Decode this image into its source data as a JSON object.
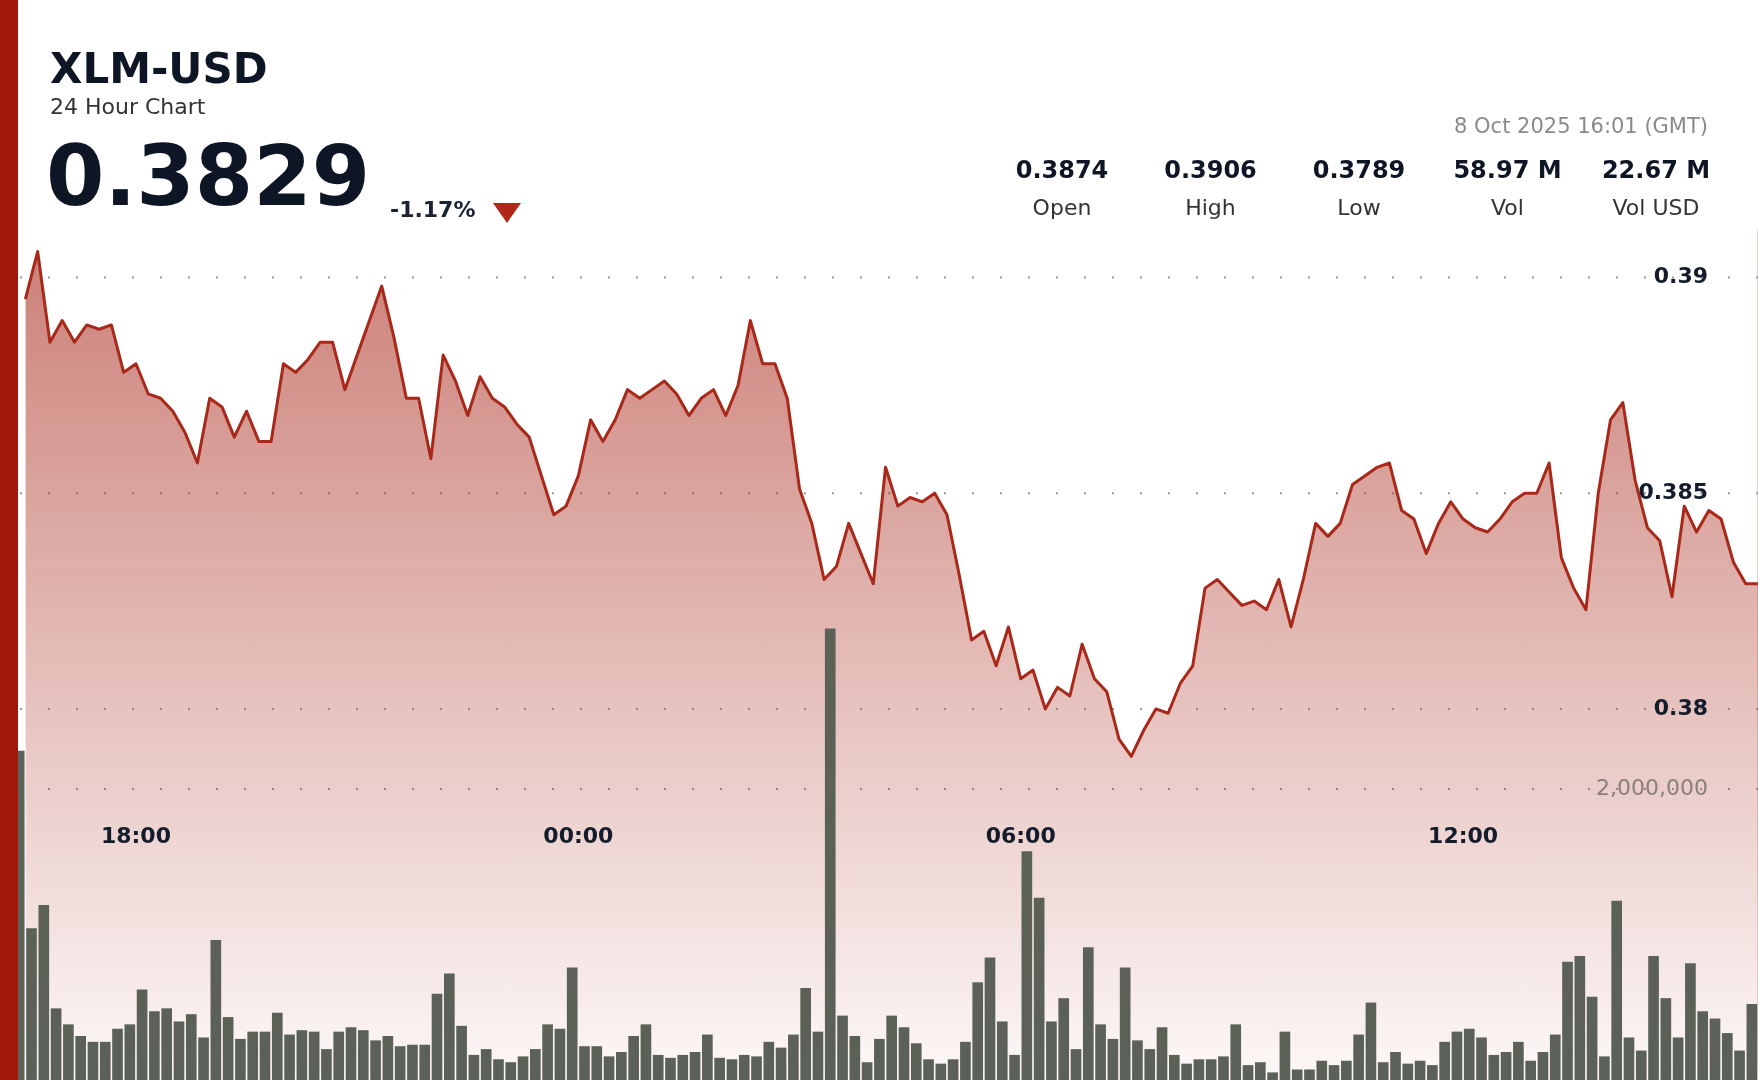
{
  "chart_data": {
    "type": "area",
    "title": "XLM-USD",
    "subtitle": "24 Hour Chart",
    "annotations": [
      "0.3829",
      "-1.17%",
      "8 Oct 2025 16:01 (GMT)",
      "0.3874",
      "Open",
      "0.3906",
      "High",
      "0.3789",
      "Low",
      "58.97 M",
      "Vol",
      "22.67 M",
      "Vol USD"
    ],
    "xlim": [
      "2025-10-07T16:24",
      "2025-10-08T16:00"
    ],
    "xticks": [
      {
        "value": "2025-10-07T18:00",
        "label": "18:00"
      },
      {
        "value": "2025-10-08T00:00",
        "label": "00:00"
      },
      {
        "value": "2025-10-08T06:00",
        "label": "06:00"
      },
      {
        "value": "2025-10-08T12:00",
        "label": "12:00"
      }
    ],
    "ylim": [
      0.3714,
      0.3911
    ],
    "yticks": [
      0.38,
      0.385,
      0.39
    ],
    "y2lim": [
      0,
      5840000
    ],
    "y2ticks": [
      {
        "value": 2000000,
        "label": "2,000,000"
      }
    ],
    "grid": "y",
    "series": [
      {
        "color": "#a8281a",
        "x": [
          "2025-10-07T16:30",
          "2025-10-07T16:40",
          "2025-10-07T16:50",
          "2025-10-07T17:00",
          "2025-10-07T17:10",
          "2025-10-07T17:20",
          "2025-10-07T17:30",
          "2025-10-07T17:40",
          "2025-10-07T17:50",
          "2025-10-07T18:00",
          "2025-10-07T18:10",
          "2025-10-07T18:20",
          "2025-10-07T18:30",
          "2025-10-07T18:40",
          "2025-10-07T18:50",
          "2025-10-07T19:00",
          "2025-10-07T19:10",
          "2025-10-07T19:20",
          "2025-10-07T19:30",
          "2025-10-07T19:40",
          "2025-10-07T19:50",
          "2025-10-07T20:00",
          "2025-10-07T20:10",
          "2025-10-07T20:20",
          "2025-10-07T20:30",
          "2025-10-07T20:40",
          "2025-10-07T20:50",
          "2025-10-07T21:00",
          "2025-10-07T21:10",
          "2025-10-07T21:20",
          "2025-10-07T21:30",
          "2025-10-07T21:40",
          "2025-10-07T21:50",
          "2025-10-07T22:00",
          "2025-10-07T22:10",
          "2025-10-07T22:20",
          "2025-10-07T22:30",
          "2025-10-07T22:40",
          "2025-10-07T22:50",
          "2025-10-07T23:00",
          "2025-10-07T23:10",
          "2025-10-07T23:20",
          "2025-10-07T23:30",
          "2025-10-07T23:40",
          "2025-10-07T23:50",
          "2025-10-08T00:00",
          "2025-10-08T00:10",
          "2025-10-08T00:20",
          "2025-10-08T00:30",
          "2025-10-08T00:40",
          "2025-10-08T00:50",
          "2025-10-08T01:00",
          "2025-10-08T01:10",
          "2025-10-08T01:20",
          "2025-10-08T01:30",
          "2025-10-08T01:40",
          "2025-10-08T01:50",
          "2025-10-08T02:00",
          "2025-10-08T02:10",
          "2025-10-08T02:20",
          "2025-10-08T02:30",
          "2025-10-08T02:40",
          "2025-10-08T02:50",
          "2025-10-08T03:00",
          "2025-10-08T03:10",
          "2025-10-08T03:20",
          "2025-10-08T03:30",
          "2025-10-08T03:40",
          "2025-10-08T03:50",
          "2025-10-08T04:00",
          "2025-10-08T04:10",
          "2025-10-08T04:20",
          "2025-10-08T04:30",
          "2025-10-08T04:40",
          "2025-10-08T04:50",
          "2025-10-08T05:00",
          "2025-10-08T05:10",
          "2025-10-08T05:20",
          "2025-10-08T05:30",
          "2025-10-08T05:40",
          "2025-10-08T05:50",
          "2025-10-08T06:00",
          "2025-10-08T06:10",
          "2025-10-08T06:20",
          "2025-10-08T06:30",
          "2025-10-08T06:40",
          "2025-10-08T06:50",
          "2025-10-08T07:00",
          "2025-10-08T07:10",
          "2025-10-08T07:20",
          "2025-10-08T07:30",
          "2025-10-08T07:40",
          "2025-10-08T07:50",
          "2025-10-08T08:00",
          "2025-10-08T08:10",
          "2025-10-08T08:20",
          "2025-10-08T08:30",
          "2025-10-08T08:40",
          "2025-10-08T08:50",
          "2025-10-08T09:00",
          "2025-10-08T09:10",
          "2025-10-08T09:20",
          "2025-10-08T09:30",
          "2025-10-08T09:40",
          "2025-10-08T09:50",
          "2025-10-08T10:00",
          "2025-10-08T10:10",
          "2025-10-08T10:20",
          "2025-10-08T10:30",
          "2025-10-08T10:40",
          "2025-10-08T10:50",
          "2025-10-08T11:00",
          "2025-10-08T11:10",
          "2025-10-08T11:20",
          "2025-10-08T11:30",
          "2025-10-08T11:40",
          "2025-10-08T11:50",
          "2025-10-08T12:00",
          "2025-10-08T12:10",
          "2025-10-08T12:20",
          "2025-10-08T12:30",
          "2025-10-08T12:40",
          "2025-10-08T12:50",
          "2025-10-08T13:00",
          "2025-10-08T13:10",
          "2025-10-08T13:20",
          "2025-10-08T13:30",
          "2025-10-08T13:40",
          "2025-10-08T13:50",
          "2025-10-08T14:00",
          "2025-10-08T14:10",
          "2025-10-08T14:20",
          "2025-10-08T14:30",
          "2025-10-08T14:40",
          "2025-10-08T14:50",
          "2025-10-08T15:00",
          "2025-10-08T15:10",
          "2025-10-08T15:20",
          "2025-10-08T15:30",
          "2025-10-08T15:40",
          "2025-10-08T15:50",
          "2025-10-08T16:00"
        ],
        "values": [
          0.3895,
          0.3906,
          0.3885,
          0.389,
          0.3885,
          0.3889,
          0.3888,
          0.3889,
          0.3878,
          0.388,
          0.3873,
          0.3872,
          0.3869,
          0.3864,
          0.3857,
          0.3872,
          0.387,
          0.3863,
          0.3869,
          0.3862,
          0.3862,
          0.388,
          0.3878,
          0.3881,
          0.3885,
          0.3885,
          0.3874,
          0.3882,
          0.389,
          0.3898,
          0.3886,
          0.3872,
          0.3872,
          0.3858,
          0.3882,
          0.3876,
          0.3868,
          0.3877,
          0.3872,
          0.387,
          0.3866,
          0.3863,
          0.3854,
          0.3845,
          0.3847,
          0.3854,
          0.3867,
          0.3862,
          0.3867,
          0.3874,
          0.3872,
          0.3874,
          0.3876,
          0.3873,
          0.3868,
          0.3872,
          0.3874,
          0.3868,
          0.3875,
          0.389,
          0.388,
          0.388,
          0.3872,
          0.3851,
          0.3843,
          0.383,
          0.3833,
          0.3843,
          0.3836,
          0.3829,
          0.3856,
          0.3847,
          0.3849,
          0.3848,
          0.385,
          0.3845,
          0.3831,
          0.3816,
          0.3818,
          0.381,
          0.3819,
          0.3807,
          0.3809,
          0.38,
          0.3805,
          0.3803,
          0.3815,
          0.3807,
          0.3804,
          0.3793,
          0.3789,
          0.3795,
          0.38,
          0.3799,
          0.3806,
          0.381,
          0.3828,
          0.383,
          0.3827,
          0.3824,
          0.3825,
          0.3823,
          0.383,
          0.3819,
          0.383,
          0.3843,
          0.384,
          0.3843,
          0.3852,
          0.3854,
          0.3856,
          0.3857,
          0.3846,
          0.3844,
          0.3836,
          0.3843,
          0.3848,
          0.3844,
          0.3842,
          0.3841,
          0.3844,
          0.3848,
          0.385,
          0.385,
          0.3857,
          0.3835,
          0.3828,
          0.3823,
          0.385,
          0.3867,
          0.3871,
          0.3853,
          0.3842,
          0.3839,
          0.3826,
          0.3847,
          0.3841,
          0.3846,
          0.3844,
          0.3834,
          0.3829,
          0.3829
        ]
      },
      {
        "type": "bar",
        "axis": "y2",
        "color": "#5b6157",
        "x": [
          "2025-10-07T16:25",
          "2025-10-07T16:35",
          "2025-10-07T16:45",
          "2025-10-07T16:55",
          "2025-10-07T17:05",
          "2025-10-07T17:15",
          "2025-10-07T17:25",
          "2025-10-07T17:35",
          "2025-10-07T17:45",
          "2025-10-07T17:55",
          "2025-10-07T18:05",
          "2025-10-07T18:15",
          "2025-10-07T18:25",
          "2025-10-07T18:35",
          "2025-10-07T18:45",
          "2025-10-07T18:55",
          "2025-10-07T19:05",
          "2025-10-07T19:15",
          "2025-10-07T19:25",
          "2025-10-07T19:35",
          "2025-10-07T19:45",
          "2025-10-07T19:55",
          "2025-10-07T20:05",
          "2025-10-07T20:15",
          "2025-10-07T20:25",
          "2025-10-07T20:35",
          "2025-10-07T20:45",
          "2025-10-07T20:55",
          "2025-10-07T21:05",
          "2025-10-07T21:15",
          "2025-10-07T21:25",
          "2025-10-07T21:35",
          "2025-10-07T21:45",
          "2025-10-07T21:55",
          "2025-10-07T22:05",
          "2025-10-07T22:15",
          "2025-10-07T22:25",
          "2025-10-07T22:35",
          "2025-10-07T22:45",
          "2025-10-07T22:55",
          "2025-10-07T23:05",
          "2025-10-07T23:15",
          "2025-10-07T23:25",
          "2025-10-07T23:35",
          "2025-10-07T23:45",
          "2025-10-07T23:55",
          "2025-10-08T00:05",
          "2025-10-08T00:15",
          "2025-10-08T00:25",
          "2025-10-08T00:35",
          "2025-10-08T00:45",
          "2025-10-08T00:55",
          "2025-10-08T01:05",
          "2025-10-08T01:15",
          "2025-10-08T01:25",
          "2025-10-08T01:35",
          "2025-10-08T01:45",
          "2025-10-08T01:55",
          "2025-10-08T02:05",
          "2025-10-08T02:15",
          "2025-10-08T02:25",
          "2025-10-08T02:35",
          "2025-10-08T02:45",
          "2025-10-08T02:55",
          "2025-10-08T03:05",
          "2025-10-08T03:15",
          "2025-10-08T03:25",
          "2025-10-08T03:35",
          "2025-10-08T03:45",
          "2025-10-08T03:55",
          "2025-10-08T04:05",
          "2025-10-08T04:15",
          "2025-10-08T04:25",
          "2025-10-08T04:35",
          "2025-10-08T04:45",
          "2025-10-08T04:55",
          "2025-10-08T05:05",
          "2025-10-08T05:15",
          "2025-10-08T05:25",
          "2025-10-08T05:35",
          "2025-10-08T05:45",
          "2025-10-08T05:55",
          "2025-10-08T06:05",
          "2025-10-08T06:15",
          "2025-10-08T06:25",
          "2025-10-08T06:35",
          "2025-10-08T06:45",
          "2025-10-08T06:55",
          "2025-10-08T07:05",
          "2025-10-08T07:15",
          "2025-10-08T07:25",
          "2025-10-08T07:35",
          "2025-10-08T07:45",
          "2025-10-08T07:55",
          "2025-10-08T08:05",
          "2025-10-08T08:15",
          "2025-10-08T08:25",
          "2025-10-08T08:35",
          "2025-10-08T08:45",
          "2025-10-08T08:55",
          "2025-10-08T09:05",
          "2025-10-08T09:15",
          "2025-10-08T09:25",
          "2025-10-08T09:35",
          "2025-10-08T09:45",
          "2025-10-08T09:55",
          "2025-10-08T10:05",
          "2025-10-08T10:15",
          "2025-10-08T10:25",
          "2025-10-08T10:35",
          "2025-10-08T10:45",
          "2025-10-08T10:55",
          "2025-10-08T11:05",
          "2025-10-08T11:15",
          "2025-10-08T11:25",
          "2025-10-08T11:35",
          "2025-10-08T11:45",
          "2025-10-08T11:55",
          "2025-10-08T12:05",
          "2025-10-08T12:15",
          "2025-10-08T12:25",
          "2025-10-08T12:35",
          "2025-10-08T12:45",
          "2025-10-08T12:55",
          "2025-10-08T13:05",
          "2025-10-08T13:15",
          "2025-10-08T13:25",
          "2025-10-08T13:35",
          "2025-10-08T13:45",
          "2025-10-08T13:55",
          "2025-10-08T14:05",
          "2025-10-08T14:15",
          "2025-10-08T14:25",
          "2025-10-08T14:35",
          "2025-10-08T14:45",
          "2025-10-08T14:55",
          "2025-10-08T15:05",
          "2025-10-08T15:15",
          "2025-10-08T15:25",
          "2025-10-08T15:35",
          "2025-10-08T15:45",
          "2025-10-08T15:55"
        ],
        "values": [
          2260000,
          1040000,
          1200000,
          490000,
          380000,
          300000,
          260000,
          260000,
          350000,
          380000,
          620000,
          470000,
          490000,
          400000,
          450000,
          290000,
          960000,
          430000,
          280000,
          330000,
          330000,
          460000,
          310000,
          340000,
          330000,
          210000,
          330000,
          360000,
          340000,
          270000,
          300000,
          230000,
          240000,
          240000,
          590000,
          730000,
          370000,
          170000,
          210000,
          140000,
          120000,
          160000,
          210000,
          380000,
          350000,
          770000,
          230000,
          230000,
          160000,
          190000,
          300000,
          380000,
          170000,
          150000,
          170000,
          190000,
          310000,
          150000,
          140000,
          170000,
          160000,
          260000,
          220000,
          310000,
          630000,
          330000,
          3100000,
          440000,
          300000,
          120000,
          280000,
          440000,
          360000,
          250000,
          140000,
          110000,
          140000,
          260000,
          670000,
          840000,
          400000,
          170000,
          1570000,
          1250000,
          400000,
          560000,
          210000,
          910000,
          380000,
          280000,
          770000,
          270000,
          210000,
          360000,
          170000,
          110000,
          140000,
          140000,
          160000,
          380000,
          100000,
          120000,
          50000,
          330000,
          70000,
          70000,
          130000,
          100000,
          130000,
          310000,
          530000,
          120000,
          190000,
          110000,
          130000,
          100000,
          260000,
          330000,
          350000,
          290000,
          170000,
          190000,
          260000,
          130000,
          190000,
          310000,
          810000,
          850000,
          570000,
          160000,
          1230000,
          290000,
          200000,
          850000,
          560000,
          290000,
          800000,
          470000,
          420000,
          320000,
          200000,
          520000
        ]
      }
    ]
  }
}
